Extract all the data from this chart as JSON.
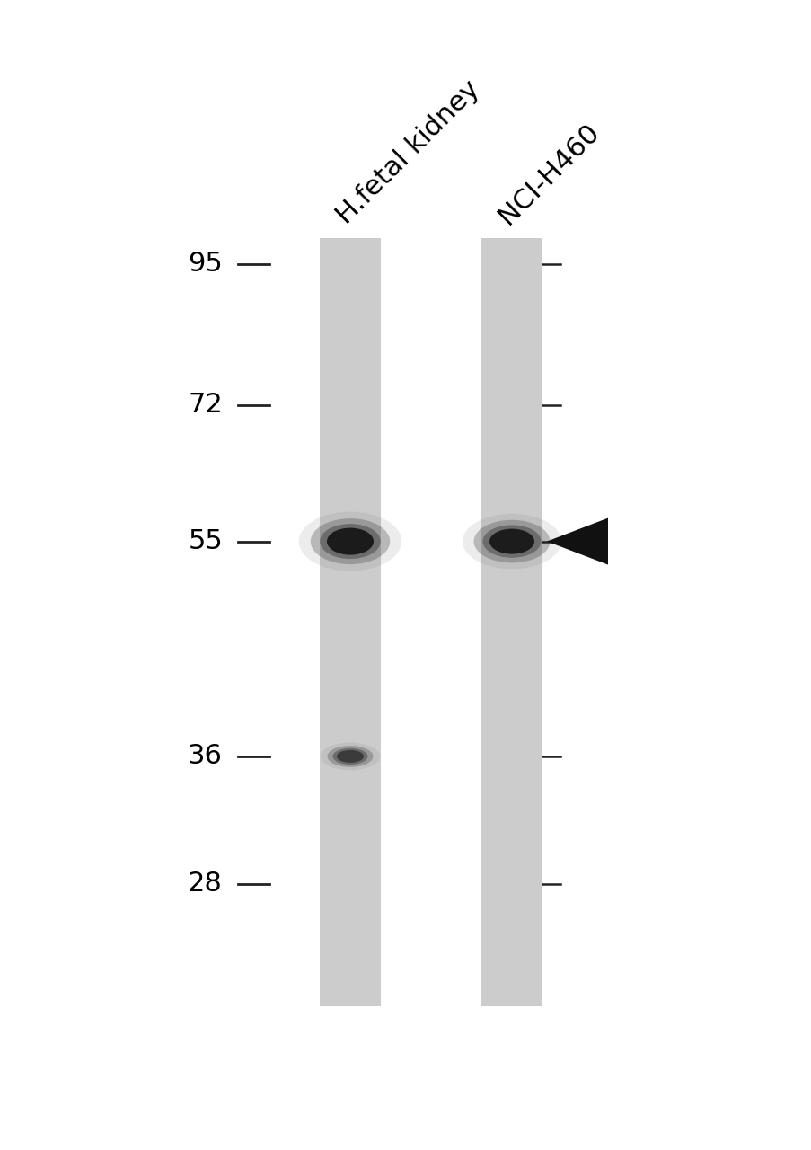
{
  "background_color": "#ffffff",
  "lane_color": "#cdcdcd",
  "fig_width": 9.04,
  "fig_height": 12.8,
  "dpi": 100,
  "lane1_label": "H.fetal kidney",
  "lane2_label": "NCI-H460",
  "label_fontsize": 22,
  "mw_fontsize": 22,
  "mw_values": [
    95,
    72,
    55,
    36,
    28
  ],
  "mw_labels": [
    "95",
    "72",
    "55",
    "36",
    "28"
  ],
  "arrow_color": "#111111",
  "lane_gray": "#cccccc",
  "tick_color": "#222222",
  "band_color": "#111111"
}
